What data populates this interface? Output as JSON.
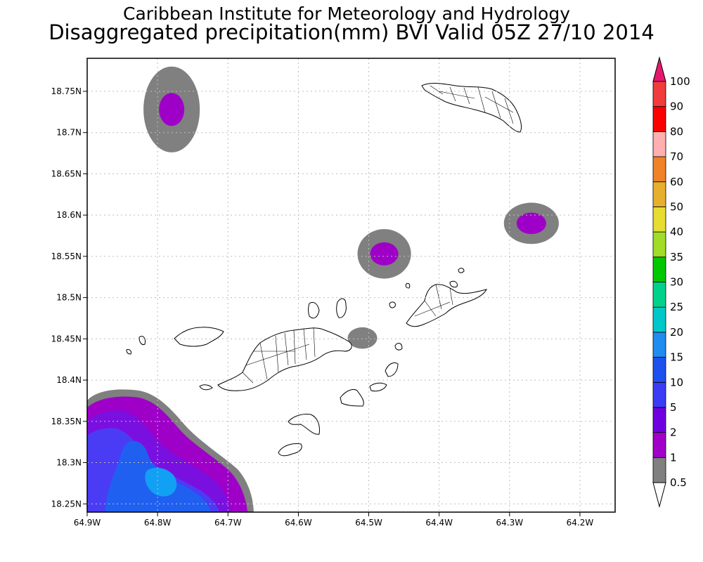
{
  "titles": {
    "line1": "Caribbean Institute for Meteorology and Hydrology",
    "line2": "Disaggregated precipitation(mm) BVI Valid 05Z 27/10 2014"
  },
  "map": {
    "lon_range": [
      -64.9,
      -64.15
    ],
    "lat_range": [
      18.24,
      18.79
    ],
    "lon_ticks": [
      "64.9W",
      "64.8W",
      "64.7W",
      "64.6W",
      "64.5W",
      "64.4W",
      "64.3W",
      "64.2W"
    ],
    "lon_tick_values": [
      -64.9,
      -64.8,
      -64.7,
      -64.6,
      -64.5,
      -64.4,
      -64.3,
      -64.2
    ],
    "lat_ticks": [
      "18.25N",
      "18.3N",
      "18.35N",
      "18.4N",
      "18.45N",
      "18.5N",
      "18.55N",
      "18.6N",
      "18.65N",
      "18.7N",
      "18.75N"
    ],
    "lat_tick_values": [
      18.25,
      18.3,
      18.35,
      18.4,
      18.45,
      18.5,
      18.55,
      18.6,
      18.65,
      18.7,
      18.75
    ],
    "grid": true,
    "blobs": [
      {
        "lon": -64.78,
        "lat": 18.728,
        "levels": [
          {
            "color": "#808080",
            "rx": 0.04,
            "ry": 0.052
          },
          {
            "color": "#9e00c8",
            "rx": 0.018,
            "ry": 0.02
          }
        ]
      },
      {
        "lon": -64.478,
        "lat": 18.553,
        "levels": [
          {
            "color": "#808080",
            "rx": 0.038,
            "ry": 0.03
          },
          {
            "color": "#9e00c8",
            "rx": 0.02,
            "ry": 0.014
          }
        ]
      },
      {
        "lon": -64.269,
        "lat": 18.59,
        "levels": [
          {
            "color": "#808080",
            "rx": 0.039,
            "ry": 0.025
          },
          {
            "color": "#9e00c8",
            "rx": 0.021,
            "ry": 0.013
          }
        ]
      },
      {
        "lon": -64.509,
        "lat": 18.451,
        "levels": [
          {
            "color": "#808080",
            "rx": 0.021,
            "ry": 0.013
          }
        ]
      }
    ],
    "corner_fill_levels": [
      "#808080",
      "#9e00c8",
      "#7a10e0",
      "#4a3cf5",
      "#2060f0",
      "#12a0f5"
    ]
  },
  "colorbar": {
    "labels": [
      "0.5",
      "1",
      "2",
      "5",
      "10",
      "15",
      "20",
      "25",
      "30",
      "35",
      "40",
      "50",
      "60",
      "70",
      "80",
      "90",
      "100"
    ],
    "colors": [
      "#808080",
      "#a000c8",
      "#7000e0",
      "#3c3cf5",
      "#1e50f0",
      "#1e8cf0",
      "#00c8c8",
      "#00d28c",
      "#00c800",
      "#a0dc28",
      "#e6dc32",
      "#e6af2d",
      "#f08228",
      "#ffafaf",
      "#fa0000",
      "#f03c3c"
    ],
    "top_color": "#e6186e"
  }
}
